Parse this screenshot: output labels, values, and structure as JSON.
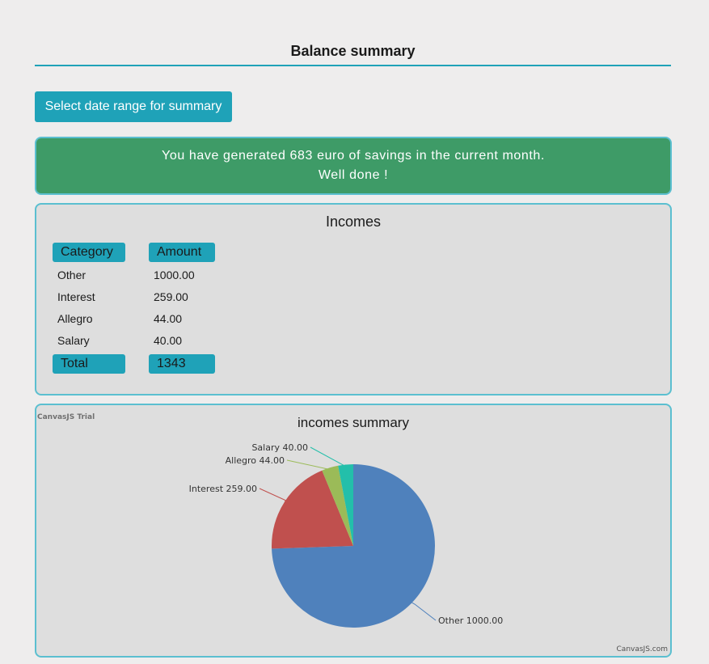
{
  "header": {
    "title": "Balance summary"
  },
  "actions": {
    "date_range_label": "Select date range for summary"
  },
  "alert": {
    "line1": "You have generated 683 euro of savings in the current month.",
    "line2": "Well done !"
  },
  "incomes": {
    "title": "Incomes",
    "columns": [
      "Category",
      "Amount"
    ],
    "rows": [
      {
        "category": "Other",
        "amount": "1000.00"
      },
      {
        "category": "Interest",
        "amount": "259.00"
      },
      {
        "category": "Allegro",
        "amount": "44.00"
      },
      {
        "category": "Salary",
        "amount": "40.00"
      }
    ],
    "total_label": "Total",
    "total_value": "1343"
  },
  "chart": {
    "trial_text": "CanvasJS Trial",
    "credit_text": "CanvasJS.com"
  },
  "colors": {
    "accent": "#1fa2b8",
    "success": "#3e9b67",
    "card_border": "#5bbfd0"
  },
  "chart_data": {
    "type": "pie",
    "title": "incomes summary",
    "categories": [
      "Other",
      "Interest",
      "Allegro",
      "Salary"
    ],
    "values": [
      1000.0,
      259.0,
      44.0,
      40.0
    ],
    "labels": [
      "Other 1000.00",
      "Interest 259.00",
      "Allegro 44.00",
      "Salary 40.00"
    ],
    "colors": [
      "#4f81bc",
      "#c0504e",
      "#9bbb58",
      "#23bfaa"
    ]
  }
}
